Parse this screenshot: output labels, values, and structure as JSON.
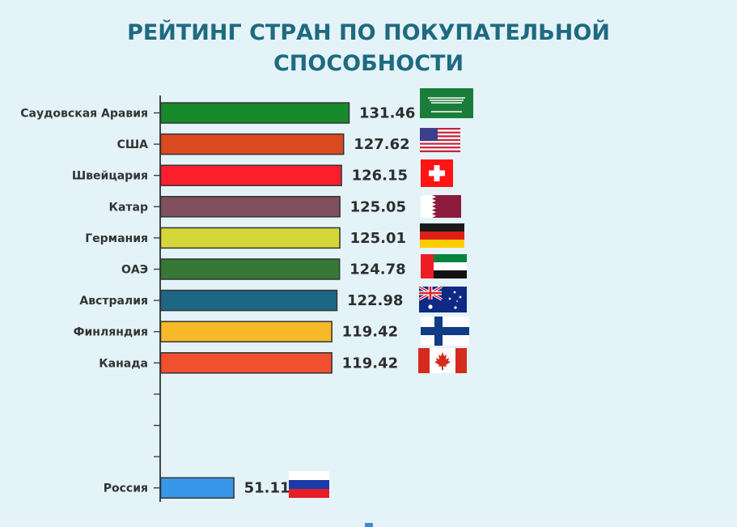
{
  "title_line1": "РЕЙТИНГ СТРАН ПО ПОКУПАТЕЛЬНОЙ",
  "title_line2": "СПОСОБНОСТИ",
  "colors": {
    "background": "#e3f3f8",
    "title": "#1f6a80"
  },
  "chart_data": {
    "type": "bar",
    "orientation": "horizontal",
    "title": "РЕЙТИНГ СТРАН ПО ПОКУПАТЕЛЬНОЙ СПОСОБНОСТИ",
    "xlabel": "",
    "ylabel": "",
    "grid": false,
    "categories": [
      "Саудовская Аравия",
      "США",
      "Швейцария",
      "Катар",
      "Германия",
      "ОАЭ",
      "Австралия",
      "Финляндия",
      "Канада",
      "",
      "",
      "",
      "Россия"
    ],
    "values": [
      131.46,
      127.62,
      126.15,
      125.05,
      125.01,
      124.78,
      122.98,
      119.42,
      119.42,
      null,
      null,
      null,
      51.11
    ],
    "value_labels": [
      "131.46",
      "127.62",
      "126.15",
      "125.05",
      "125.01",
      "124.78",
      "122.98",
      "119.42",
      "119.42",
      "",
      "",
      "",
      "51.11"
    ],
    "bar_colors": [
      "#178a2b",
      "#dc4a1f",
      "#fb1f2e",
      "#80505e",
      "#d4d737",
      "#377837",
      "#1e6782",
      "#f7b92a",
      "#f0502f",
      "",
      "",
      "",
      "#3897e9"
    ],
    "flags": [
      "saudi-arabia-flag",
      "usa-flag",
      "switzerland-flag",
      "qatar-flag",
      "germany-flag",
      "uae-flag",
      "australia-flag",
      "finland-flag",
      "canada-flag",
      "",
      "",
      "",
      "russia-flag"
    ]
  }
}
